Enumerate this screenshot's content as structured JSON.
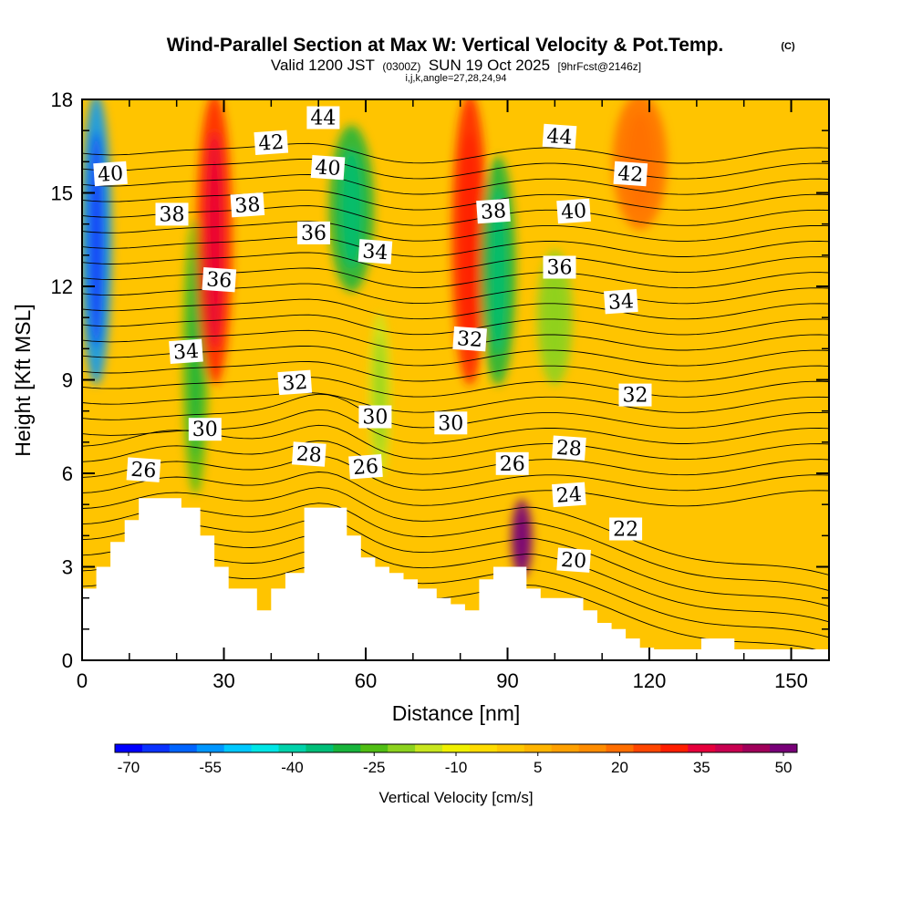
{
  "header": {
    "title": "Wind-Parallel Section at Max W: Vertical Velocity & Pot.Temp.",
    "copyright": "(C)",
    "valid_pre": "Valid 1200 JST",
    "valid_utc": "(0300Z)",
    "valid_post": "SUN 19 Oct 2025",
    "forecast": "[9hrFcst@2146z]",
    "params": "i,j,k,angle=27,28,24,94"
  },
  "chart_data": {
    "type": "heatmap",
    "xlabel": "Distance [nm]",
    "ylabel": "Height [Kft MSL]",
    "xlim": [
      0,
      158
    ],
    "ylim": [
      0,
      18
    ],
    "xticks": [
      0,
      30,
      60,
      90,
      120,
      150
    ],
    "yticks": [
      0,
      3,
      6,
      9,
      12,
      15,
      18
    ],
    "colorbar": {
      "label": "Vertical Velocity [cm/s]",
      "tick_labels": [
        -70,
        -55,
        -40,
        -25,
        -10,
        5,
        20,
        35,
        50
      ],
      "colors": [
        "#0000ff",
        "#0a32ff",
        "#0064ff",
        "#0096ff",
        "#00c8ff",
        "#00e6e6",
        "#00d2aa",
        "#00be78",
        "#18b43c",
        "#50be14",
        "#8cd21e",
        "#c8e61e",
        "#f0f000",
        "#ffdc00",
        "#ffc800",
        "#ffb400",
        "#ffa000",
        "#ff8c00",
        "#ff6e00",
        "#ff4600",
        "#ff1e00",
        "#e6003c",
        "#c80050",
        "#a0005a",
        "#780078"
      ]
    },
    "velocity_features": [
      {
        "x": 3,
        "w": 5,
        "ytop": 18,
        "ybot": 9,
        "value": -55
      },
      {
        "x": 24,
        "w": 4,
        "ytop": 14,
        "ybot": 5.5,
        "value": -25
      },
      {
        "x": 28,
        "w": 6,
        "ytop": 18,
        "ybot": 9,
        "value": 32
      },
      {
        "x": 57,
        "w": 8,
        "ytop": 17,
        "ybot": 12,
        "value": -30
      },
      {
        "x": 63,
        "w": 3,
        "ytop": 11,
        "ybot": 6,
        "value": -15
      },
      {
        "x": 82,
        "w": 6,
        "ytop": 18,
        "ybot": 9,
        "value": 30
      },
      {
        "x": 88,
        "w": 6,
        "ytop": 16,
        "ybot": 9,
        "value": -30
      },
      {
        "x": 100,
        "w": 6,
        "ytop": 13,
        "ybot": 9,
        "value": -18
      },
      {
        "x": 93,
        "w": 3,
        "ytop": 5,
        "ybot": 2.8,
        "value": 50
      },
      {
        "x": 118,
        "w": 10,
        "ytop": 18,
        "ybot": 14,
        "value": 20
      }
    ],
    "theta_contours": [
      20,
      22,
      24,
      26,
      28,
      30,
      32,
      34,
      36,
      38,
      40,
      42,
      44
    ],
    "contour_labels": [
      {
        "text": "40",
        "x": 6,
        "y": 15.6
      },
      {
        "text": "38",
        "x": 19,
        "y": 14.3
      },
      {
        "text": "36",
        "x": 29,
        "y": 12.2
      },
      {
        "text": "34",
        "x": 22,
        "y": 9.9
      },
      {
        "text": "30",
        "x": 26,
        "y": 7.4
      },
      {
        "text": "26",
        "x": 13,
        "y": 6.1
      },
      {
        "text": "42",
        "x": 40,
        "y": 16.6
      },
      {
        "text": "44",
        "x": 51,
        "y": 17.4
      },
      {
        "text": "40",
        "x": 52,
        "y": 15.8
      },
      {
        "text": "38",
        "x": 35,
        "y": 14.6
      },
      {
        "text": "36",
        "x": 49,
        "y": 13.7
      },
      {
        "text": "34",
        "x": 62,
        "y": 13.1
      },
      {
        "text": "32",
        "x": 45,
        "y": 8.9
      },
      {
        "text": "30",
        "x": 62,
        "y": 7.8
      },
      {
        "text": "28",
        "x": 48,
        "y": 6.6
      },
      {
        "text": "26",
        "x": 60,
        "y": 6.2
      },
      {
        "text": "30",
        "x": 78,
        "y": 7.6
      },
      {
        "text": "32",
        "x": 82,
        "y": 10.3
      },
      {
        "text": "38",
        "x": 87,
        "y": 14.4
      },
      {
        "text": "26",
        "x": 91,
        "y": 6.3
      },
      {
        "text": "44",
        "x": 101,
        "y": 16.8
      },
      {
        "text": "40",
        "x": 104,
        "y": 14.4
      },
      {
        "text": "36",
        "x": 101,
        "y": 12.6
      },
      {
        "text": "42",
        "x": 116,
        "y": 15.6
      },
      {
        "text": "34",
        "x": 114,
        "y": 11.5
      },
      {
        "text": "32",
        "x": 117,
        "y": 8.5
      },
      {
        "text": "28",
        "x": 103,
        "y": 6.8
      },
      {
        "text": "24",
        "x": 103,
        "y": 5.3
      },
      {
        "text": "22",
        "x": 115,
        "y": 4.2
      },
      {
        "text": "20",
        "x": 104,
        "y": 3.2
      }
    ],
    "terrain": [
      [
        0,
        2.3
      ],
      [
        3,
        2.3
      ],
      [
        3,
        3.0
      ],
      [
        6,
        3.0
      ],
      [
        6,
        3.8
      ],
      [
        9,
        3.8
      ],
      [
        9,
        4.5
      ],
      [
        12,
        4.5
      ],
      [
        12,
        5.2
      ],
      [
        21,
        5.2
      ],
      [
        21,
        4.9
      ],
      [
        25,
        4.9
      ],
      [
        25,
        4.0
      ],
      [
        28,
        4.0
      ],
      [
        28,
        3.0
      ],
      [
        31,
        3.0
      ],
      [
        31,
        2.3
      ],
      [
        37,
        2.3
      ],
      [
        37,
        1.6
      ],
      [
        40,
        1.6
      ],
      [
        40,
        2.3
      ],
      [
        43,
        2.3
      ],
      [
        43,
        2.8
      ],
      [
        47,
        2.8
      ],
      [
        47,
        4.9
      ],
      [
        56,
        4.9
      ],
      [
        56,
        4.0
      ],
      [
        59,
        4.0
      ],
      [
        59,
        3.3
      ],
      [
        62,
        3.3
      ],
      [
        62,
        3.0
      ],
      [
        65,
        3.0
      ],
      [
        65,
        2.8
      ],
      [
        68,
        2.8
      ],
      [
        68,
        2.6
      ],
      [
        71,
        2.6
      ],
      [
        71,
        2.3
      ],
      [
        75,
        2.3
      ],
      [
        75,
        2.0
      ],
      [
        78,
        2.0
      ],
      [
        78,
        1.8
      ],
      [
        81,
        1.8
      ],
      [
        81,
        1.6
      ],
      [
        84,
        1.6
      ],
      [
        84,
        2.6
      ],
      [
        87,
        2.6
      ],
      [
        87,
        3.0
      ],
      [
        94,
        3.0
      ],
      [
        94,
        2.3
      ],
      [
        97,
        2.3
      ],
      [
        97,
        2.0
      ],
      [
        106,
        2.0
      ],
      [
        106,
        1.6
      ],
      [
        109,
        1.6
      ],
      [
        109,
        1.2
      ],
      [
        112,
        1.2
      ],
      [
        112,
        1.0
      ],
      [
        115,
        1.0
      ],
      [
        115,
        0.7
      ],
      [
        118,
        0.7
      ],
      [
        118,
        0.4
      ],
      [
        121,
        0.4
      ],
      [
        121,
        0.35
      ],
      [
        131,
        0.35
      ],
      [
        131,
        0.7
      ],
      [
        138,
        0.7
      ],
      [
        138,
        0.35
      ],
      [
        158,
        0.35
      ]
    ]
  }
}
